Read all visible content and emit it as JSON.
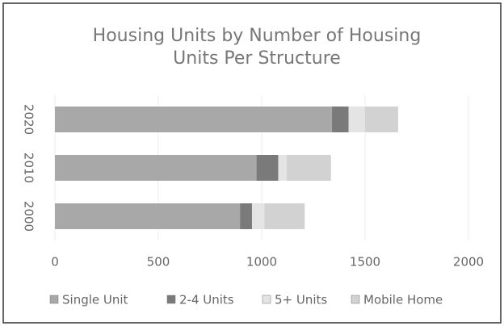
{
  "chart_data": {
    "type": "bar",
    "orientation": "horizontal",
    "stacked": true,
    "title_lines": [
      "Housing Units by  Number of Housing",
      "Units Per Structure"
    ],
    "categories": [
      "2020",
      "2010",
      "2000"
    ],
    "series": [
      {
        "name": "Single Unit",
        "color": "#a8a8a8",
        "values": [
          1340,
          975,
          895
        ]
      },
      {
        "name": "2-4 Units",
        "color": "#7a7a7a",
        "values": [
          80,
          105,
          58
        ]
      },
      {
        "name": "5+ Units",
        "color": "#e4e4e4",
        "values": [
          80,
          40,
          60
        ]
      },
      {
        "name": "Mobile Home",
        "color": "#d2d2d2",
        "values": [
          160,
          215,
          195
        ]
      }
    ],
    "xlim": [
      0,
      2000
    ],
    "xticks": [
      0,
      500,
      1000,
      1500,
      2000
    ],
    "grid": true,
    "legend": "bottom"
  }
}
